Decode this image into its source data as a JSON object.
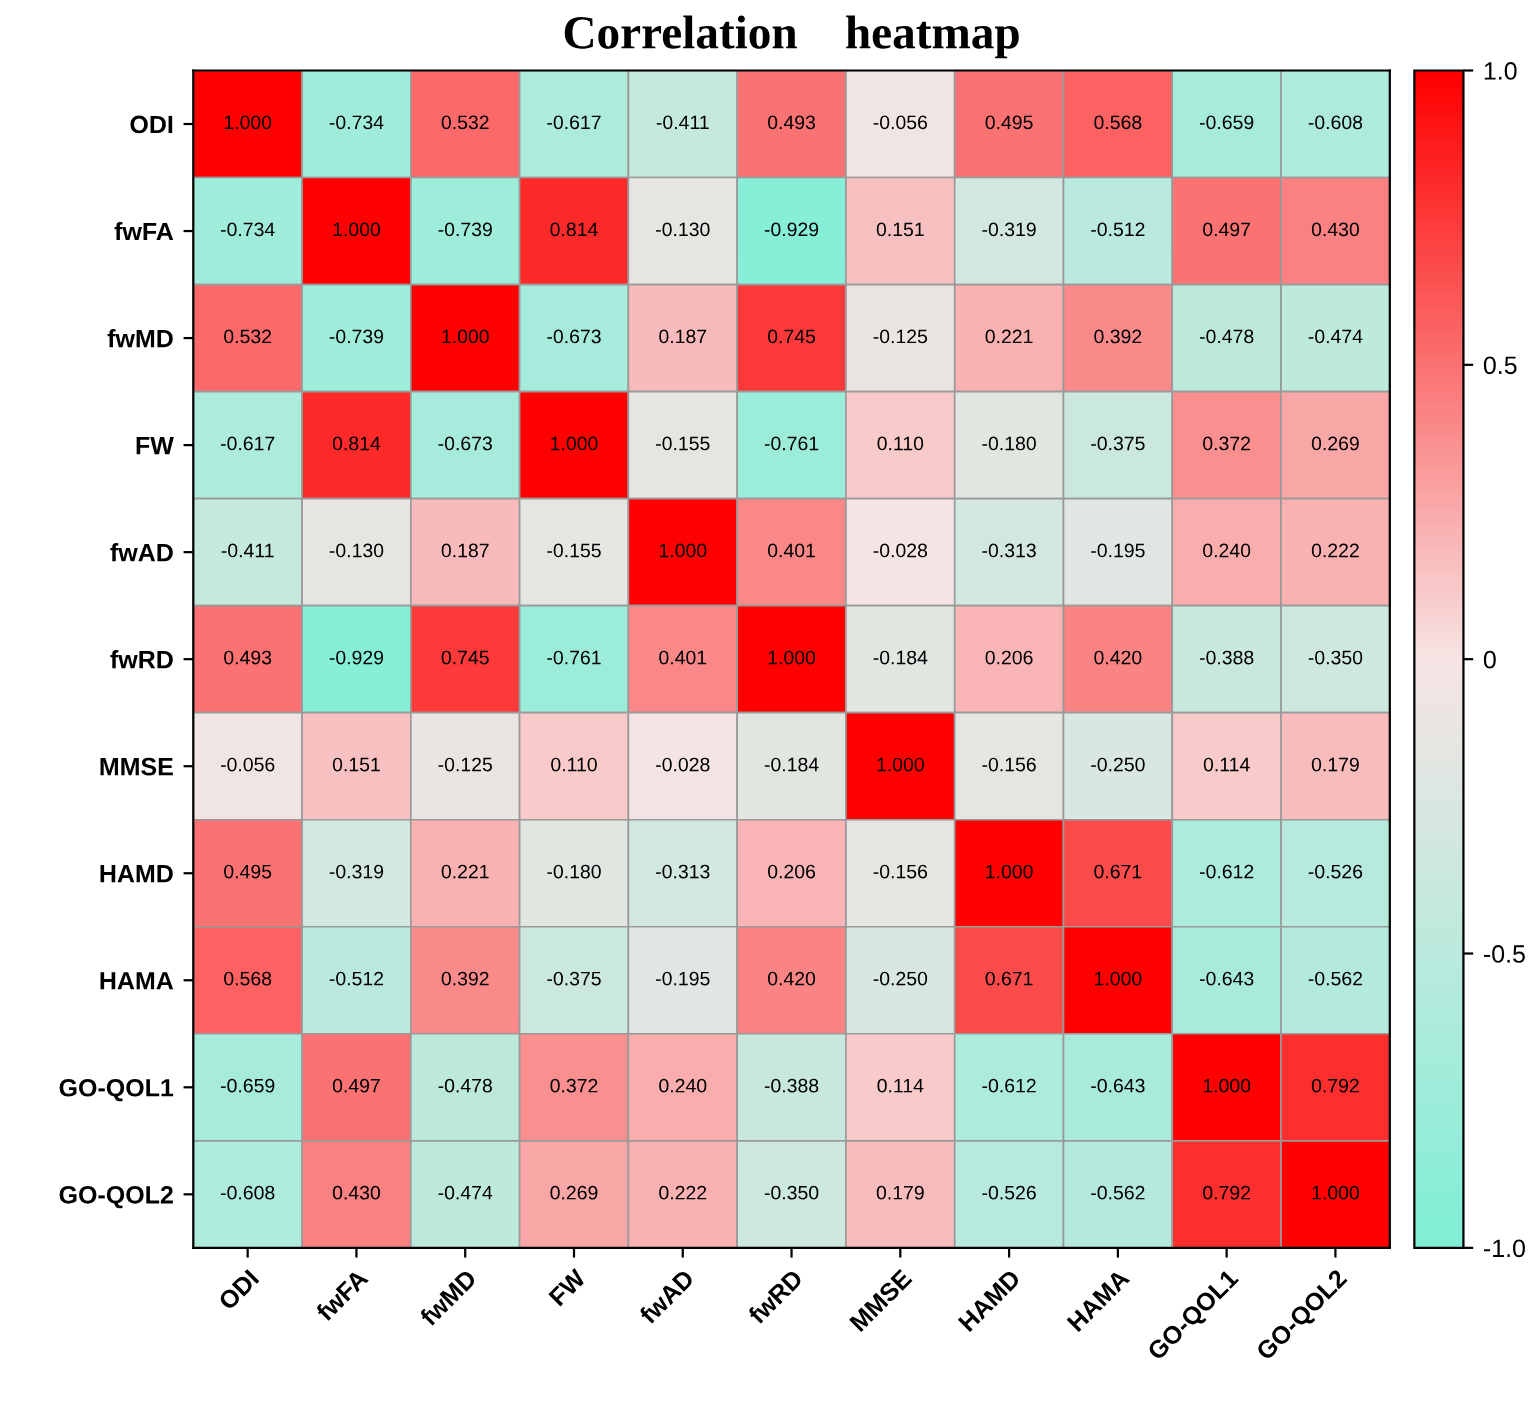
{
  "chart_data": {
    "type": "heatmap",
    "title": "Correlation    heatmap",
    "categories": [
      "ODI",
      "fwFA",
      "fwMD",
      "FW",
      "fwAD",
      "fwRD",
      "MMSE",
      "HAMD",
      "HAMA",
      "GO-QOL1",
      "GO-QOL2"
    ],
    "y_categories": [
      "ODI",
      "fwFA",
      "fwMD",
      "FW",
      "fwAD",
      "fwRD",
      "MMSE",
      "HAMD",
      "HAMA",
      "GO-QOL1",
      "GO-QOL2"
    ],
    "cells": [
      [
        1.0,
        -0.734,
        0.532,
        -0.617,
        -0.411,
        0.493,
        -0.056,
        0.495,
        0.568,
        -0.659,
        -0.608
      ],
      [
        -0.734,
        1.0,
        -0.739,
        0.814,
        -0.13,
        -0.929,
        0.151,
        -0.319,
        -0.512,
        0.497,
        0.43
      ],
      [
        0.532,
        -0.739,
        1.0,
        -0.673,
        0.187,
        0.745,
        -0.125,
        0.221,
        0.392,
        -0.478,
        -0.474
      ],
      [
        -0.617,
        0.814,
        -0.673,
        1.0,
        -0.155,
        -0.761,
        0.11,
        -0.18,
        -0.375,
        0.372,
        0.269
      ],
      [
        -0.411,
        -0.13,
        0.187,
        -0.155,
        1.0,
        0.401,
        -0.028,
        -0.313,
        -0.195,
        0.24,
        0.222
      ],
      [
        0.493,
        -0.929,
        0.745,
        -0.761,
        0.401,
        1.0,
        -0.184,
        0.206,
        0.42,
        -0.388,
        -0.35
      ],
      [
        -0.056,
        0.151,
        -0.125,
        0.11,
        -0.028,
        -0.184,
        1.0,
        -0.156,
        -0.25,
        0.114,
        0.179
      ],
      [
        0.495,
        -0.319,
        0.221,
        -0.18,
        -0.313,
        0.206,
        -0.156,
        1.0,
        0.671,
        -0.612,
        -0.526
      ],
      [
        0.568,
        -0.512,
        0.392,
        -0.375,
        -0.195,
        0.42,
        -0.25,
        0.671,
        1.0,
        -0.643,
        -0.562
      ],
      [
        -0.659,
        0.497,
        -0.478,
        0.372,
        0.24,
        -0.388,
        0.114,
        -0.612,
        -0.643,
        1.0,
        0.792
      ],
      [
        -0.608,
        0.43,
        -0.474,
        0.269,
        0.222,
        -0.35,
        0.179,
        -0.526,
        -0.562,
        0.792,
        1.0
      ]
    ],
    "cell_labels": [
      [
        "1.000",
        "-0.734",
        "0.532",
        "-0.617",
        "-0.411",
        "0.493",
        "-0.056",
        "0.495",
        "0.568",
        "-0.659",
        "-0.608"
      ],
      [
        "-0.734",
        "1.000",
        "-0.739",
        "0.814",
        "-0.130",
        "-0.929",
        "0.151",
        "-0.319",
        "-0.512",
        "0.497",
        "0.430"
      ],
      [
        "0.532",
        "-0.739",
        "1.000",
        "-0.673",
        "0.187",
        "0.745",
        "-0.125",
        "0.221",
        "0.392",
        "-0.478",
        "-0.474"
      ],
      [
        "-0.617",
        "0.814",
        "-0.673",
        "1.000",
        "-0.155",
        "-0.761",
        "0.110",
        "-0.180",
        "-0.375",
        "0.372",
        "0.269"
      ],
      [
        "-0.411",
        "-0.130",
        "0.187",
        "-0.155",
        "1.000",
        "0.401",
        "-0.028",
        "-0.313",
        "-0.195",
        "0.240",
        "0.222"
      ],
      [
        "0.493",
        "-0.929",
        "0.745",
        "-0.761",
        "0.401",
        "1.000",
        "-0.184",
        "0.206",
        "0.420",
        "-0.388",
        "-0.350"
      ],
      [
        "-0.056",
        "0.151",
        "-0.125",
        "0.110",
        "-0.028",
        "-0.184",
        "1.000",
        "-0.156",
        "-0.250",
        "0.114",
        "0.179"
      ],
      [
        "0.495",
        "-0.319",
        "0.221",
        "-0.180",
        "-0.313",
        "0.206",
        "-0.156",
        "1.000",
        "0.671",
        "-0.612",
        "-0.526"
      ],
      [
        "0.568",
        "-0.512",
        "0.392",
        "-0.375",
        "-0.195",
        "0.420",
        "-0.250",
        "0.671",
        "1.000",
        "-0.643",
        "-0.562"
      ],
      [
        "-0.659",
        "0.497",
        "-0.478",
        "0.372",
        "0.240",
        "-0.388",
        "0.114",
        "-0.612",
        "-0.643",
        "1.000",
        "0.792"
      ],
      [
        "-0.608",
        "0.430",
        "-0.474",
        "0.269",
        "0.222",
        "-0.350",
        "0.179",
        "-0.526",
        "-0.562",
        "0.792",
        "1.000"
      ]
    ],
    "clim": [
      -1.0,
      1.0
    ],
    "cticks": [
      {
        "value": 1.0,
        "label": "1.0"
      },
      {
        "value": 0.5,
        "label": "0.5"
      },
      0,
      {
        "value": -0.5,
        "label": "-0.5"
      },
      {
        "value": -1.0,
        "label": "-1.0"
      }
    ]
  }
}
